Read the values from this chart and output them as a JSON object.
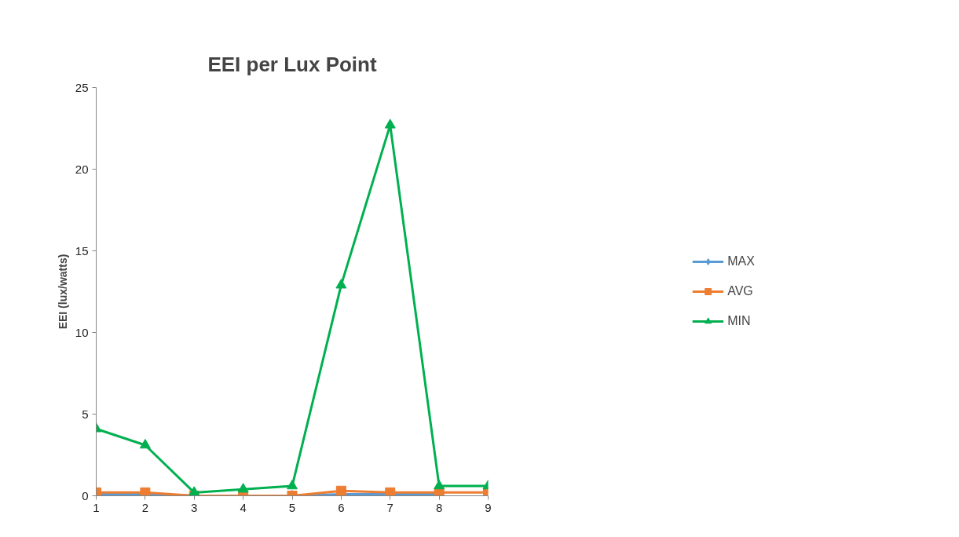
{
  "chart_data": {
    "type": "line",
    "title": "EEI per Lux Point",
    "ylabel": "EEI (lux/watts)",
    "x": [
      1,
      2,
      3,
      4,
      5,
      6,
      7,
      8,
      9
    ],
    "xlim": [
      1,
      9
    ],
    "xticks": [
      1,
      2,
      3,
      4,
      5,
      6,
      7,
      8,
      9
    ],
    "ylim": [
      0,
      25
    ],
    "yticks": [
      0,
      5,
      10,
      15,
      20,
      25
    ],
    "grid": false,
    "legend": "right",
    "series": [
      {
        "name": "MAX",
        "color": "#5b9bd5",
        "marker": "diamond",
        "values": [
          0.1,
          0.1,
          0,
          0,
          0,
          0.1,
          0.1,
          0.1,
          null
        ]
      },
      {
        "name": "AVG",
        "color": "#ed7d31",
        "marker": "square",
        "values": [
          0.2,
          0.2,
          0,
          0,
          0,
          0.3,
          0.2,
          0.2,
          0.2
        ]
      },
      {
        "name": "MIN",
        "color": "#00b050",
        "marker": "triangle",
        "values": [
          4.1,
          3.1,
          0.2,
          0.4,
          0.6,
          12.9,
          22.7,
          0.6,
          0.6
        ]
      }
    ]
  }
}
